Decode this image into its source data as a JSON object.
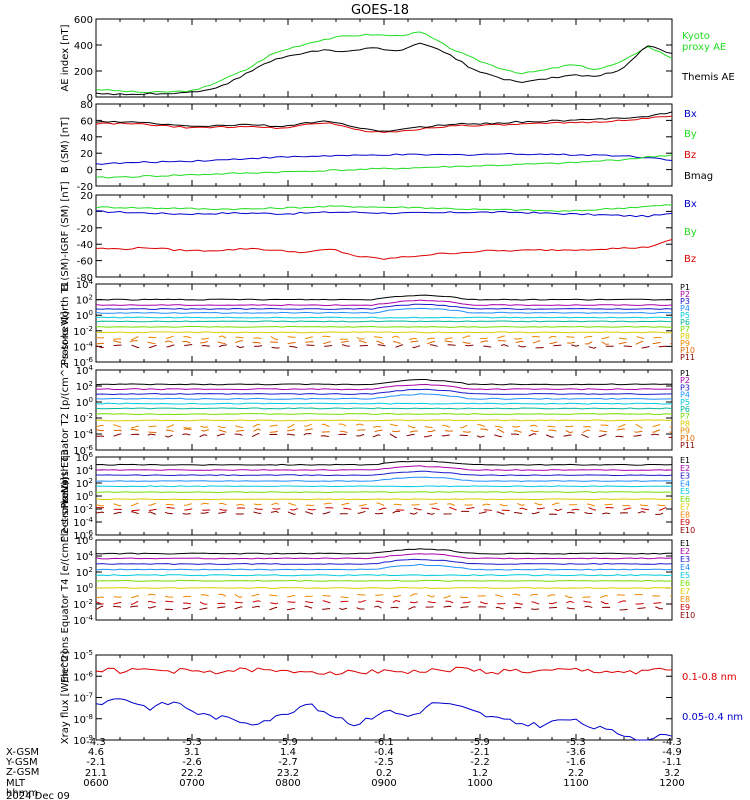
{
  "title": "GOES-18",
  "colors": {
    "black": "#000000",
    "green": "#22dd22",
    "red": "#dd0000",
    "blue": "#0000cc",
    "purple": "#aa00aa",
    "navy": "#1a1acc",
    "lightblue": "#1f8fff",
    "cyan": "#00ccdd",
    "teal": "#00bb99",
    "greenyellow": "#77dd00",
    "gold": "#ddcc00",
    "orange": "#ee8800",
    "darkorange": "#dd6600",
    "darkred": "#aa0000",
    "crimson": "#cc0000",
    "maroon": "#880000"
  },
  "ephemeris": {
    "row_labels": [
      "X-GSM",
      "Y-GSM",
      "Z-GSM",
      "MLT",
      "hhmm",
      "2024 Dec 09"
    ],
    "columns": [
      {
        "x_gsm": "-4.3",
        "y_gsm": "4.6",
        "z_gsm": "-2.1",
        "mlt": "21.1",
        "hhmm": "0600"
      },
      {
        "x_gsm": "-5.3",
        "y_gsm": "3.1",
        "z_gsm": "-2.6",
        "mlt": "22.2",
        "hhmm": "0700"
      },
      {
        "x_gsm": "-5.9",
        "y_gsm": "1.4",
        "z_gsm": "-2.7",
        "mlt": "23.2",
        "hhmm": "0800"
      },
      {
        "x_gsm": "-6.1",
        "y_gsm": "-0.4",
        "z_gsm": "-2.5",
        "mlt": "0.2",
        "hhmm": "0900"
      },
      {
        "x_gsm": "-5.9",
        "y_gsm": "-2.1",
        "z_gsm": "-2.2",
        "mlt": "1.2",
        "hhmm": "1000"
      },
      {
        "x_gsm": "-5.3",
        "y_gsm": "-3.6",
        "z_gsm": "-1.6",
        "mlt": "2.2",
        "hhmm": "1100"
      },
      {
        "x_gsm": "-4.3",
        "y_gsm": "-4.9",
        "z_gsm": "-1.1",
        "mlt": "3.2",
        "hhmm": "1200"
      }
    ]
  },
  "chart_data": [
    {
      "type": "line",
      "id": "ae",
      "ylabel": "AE index [nT]",
      "ylim": [
        0,
        600
      ],
      "yticks": [
        "0",
        "200",
        "400",
        "600"
      ],
      "series": [
        {
          "name": "Kyoto proxy AE",
          "color": "green",
          "y": [
            60,
            45,
            35,
            40,
            50,
            130,
            210,
            330,
            390,
            440,
            470,
            480,
            470,
            500,
            390,
            300,
            230,
            180,
            210,
            250,
            210,
            270,
            390,
            300
          ]
        },
        {
          "name": "Themis AE",
          "color": "black",
          "y": [
            30,
            20,
            25,
            30,
            40,
            80,
            180,
            280,
            330,
            360,
            350,
            380,
            350,
            420,
            340,
            220,
            150,
            110,
            140,
            170,
            160,
            210,
            400,
            330
          ]
        }
      ],
      "legend": [
        "Kyoto proxy AE",
        "Themis AE"
      ]
    },
    {
      "type": "line",
      "id": "bsm",
      "ylabel": "B (SM) [nT]",
      "ylim": [
        -20,
        80
      ],
      "yticks": [
        "-20",
        "0",
        "20",
        "40",
        "60",
        "80"
      ],
      "series": [
        {
          "name": "Bx",
          "color": "blue",
          "y": [
            7,
            8,
            9,
            10,
            11,
            12,
            14,
            15,
            16,
            17,
            17,
            18,
            18,
            18,
            18,
            19,
            19,
            19,
            18,
            18,
            17,
            15,
            12
          ]
        },
        {
          "name": "By",
          "color": "green",
          "y": [
            -10,
            -9,
            -8,
            -7,
            -6,
            -5,
            -4,
            -3,
            -2,
            -1,
            0,
            1,
            2,
            3,
            4,
            5,
            6,
            7,
            8,
            10,
            12,
            15,
            18
          ]
        },
        {
          "name": "Bz",
          "color": "red",
          "y": [
            56,
            56,
            55,
            52,
            51,
            52,
            53,
            50,
            55,
            57,
            48,
            45,
            48,
            52,
            54,
            54,
            55,
            56,
            57,
            58,
            60,
            62,
            66
          ]
        },
        {
          "name": "Bmag",
          "color": "black",
          "y": [
            58,
            58,
            57,
            54,
            53,
            54,
            55,
            52,
            57,
            59,
            50,
            47,
            50,
            54,
            56,
            56,
            58,
            59,
            60,
            61,
            63,
            65,
            70
          ]
        }
      ],
      "legend": [
        "Bx",
        "By",
        "Bz",
        "Bmag"
      ]
    },
    {
      "type": "line",
      "id": "bigrf",
      "ylabel": "B (SM)-IGRF (SM) [nT]",
      "ylim": [
        -80,
        20
      ],
      "yticks": [
        "-80",
        "-60",
        "-40",
        "-20",
        "0",
        "20"
      ],
      "series": [
        {
          "name": "Bx",
          "color": "blue",
          "y": [
            0,
            -1,
            -2,
            -3,
            -3,
            -2,
            -2,
            -3,
            -2,
            -1,
            -1,
            -2,
            -2,
            -2,
            -1,
            -1,
            -1,
            -2,
            -3,
            -4,
            -5,
            -6,
            -3
          ]
        },
        {
          "name": "By",
          "color": "green",
          "y": [
            5,
            5,
            4,
            4,
            3,
            3,
            3,
            4,
            5,
            6,
            6,
            5,
            5,
            4,
            3,
            2,
            2,
            1,
            0,
            2,
            4,
            6,
            8
          ]
        },
        {
          "name": "Bz",
          "color": "red",
          "y": [
            -45,
            -46,
            -44,
            -47,
            -48,
            -47,
            -45,
            -48,
            -50,
            -46,
            -55,
            -58,
            -55,
            -52,
            -50,
            -48,
            -48,
            -47,
            -47,
            -46,
            -45,
            -44,
            -35
          ]
        }
      ],
      "legend": [
        "Bx",
        "By",
        "Bz"
      ]
    },
    {
      "type": "line",
      "id": "protons_north",
      "ylabel": "Protons North T1",
      "log": true,
      "ylim_exp": [
        -6,
        4
      ],
      "yticks": [
        "10^-6",
        "10^-4",
        "10^-2",
        "10^0",
        "10^2",
        "10^4"
      ],
      "levels": [
        2.0,
        1.3,
        0.8,
        0.3,
        -0.3,
        -0.8,
        -1.5,
        -2.2,
        -2.9,
        -3.5,
        -4.0
      ],
      "colors": [
        "black",
        "purple",
        "navy",
        "lightblue",
        "cyan",
        "teal",
        "greenyellow",
        "gold",
        "orange",
        "darkorange",
        "maroon"
      ],
      "legend": [
        "P1",
        "P2",
        "P3",
        "P4",
        "P5",
        "P6",
        "P7",
        "P8",
        "P9",
        "P10",
        "P11"
      ]
    },
    {
      "type": "line",
      "id": "protons_equator",
      "ylabel": "Protons Equator T2 [p/(cm^2-s-sr-keV)]",
      "log": true,
      "ylim_exp": [
        -6,
        4
      ],
      "yticks": [
        "10^-6",
        "10^-4",
        "10^-2",
        "10^0",
        "10^2",
        "10^4"
      ],
      "levels": [
        2.2,
        1.6,
        1.0,
        0.4,
        -0.2,
        -0.8,
        -1.5,
        -2.3,
        -3.0,
        -3.6,
        -4.2
      ],
      "colors": [
        "black",
        "purple",
        "navy",
        "lightblue",
        "cyan",
        "teal",
        "greenyellow",
        "gold",
        "orange",
        "darkorange",
        "maroon"
      ],
      "legend": [
        "P1",
        "P2",
        "P3",
        "P4",
        "P5",
        "P6",
        "P7",
        "P8",
        "P9",
        "P10",
        "P11"
      ]
    },
    {
      "type": "line",
      "id": "electrons_north",
      "ylabel": "Electrons North T3",
      "log": true,
      "ylim_exp": [
        -6,
        6
      ],
      "yticks": [
        "10^-6",
        "10^-4",
        "10^-2",
        "10^0",
        "10^2",
        "10^4",
        "10^6"
      ],
      "levels": [
        4.8,
        4.0,
        3.2,
        2.3,
        1.5,
        0.6,
        -0.5,
        -1.3,
        -2.0,
        -2.6
      ],
      "colors": [
        "black",
        "purple",
        "navy",
        "lightblue",
        "cyan",
        "greenyellow",
        "gold",
        "orange",
        "crimson",
        "maroon"
      ],
      "legend": [
        "E1",
        "E2",
        "E3",
        "E4",
        "E5",
        "E6",
        "E7",
        "E8",
        "E9",
        "E10"
      ]
    },
    {
      "type": "line",
      "id": "electrons_equator",
      "ylabel": "Electrons Equator T4 [e/(cm^2-s-sr-keV)]",
      "log": true,
      "ylim_exp": [
        -4,
        6
      ],
      "yticks": [
        "10^-4",
        "10^-2",
        "10^0",
        "10^2",
        "10^4",
        "10^6"
      ],
      "levels": [
        4.3,
        3.7,
        3.0,
        2.3,
        1.6,
        0.9,
        0.0,
        -1.0,
        -1.8,
        -2.5
      ],
      "colors": [
        "black",
        "purple",
        "navy",
        "lightblue",
        "cyan",
        "greenyellow",
        "gold",
        "orange",
        "crimson",
        "maroon"
      ],
      "legend": [
        "E1",
        "E2",
        "E3",
        "E4",
        "E5",
        "E6",
        "E7",
        "E8",
        "E9",
        "E10"
      ]
    },
    {
      "type": "line",
      "id": "xray",
      "ylabel": "Xray flux [W/m^2]",
      "log": true,
      "ylim_exp": [
        -9,
        -5
      ],
      "yticks": [
        "10^-9",
        "10^-8",
        "10^-7",
        "10^-6",
        "10^-5"
      ],
      "series": [
        {
          "name": "0.1-0.8 nm",
          "color": "red",
          "y": [
            -5.7,
            -5.75,
            -5.7,
            -5.75,
            -5.8,
            -5.75,
            -5.7,
            -5.8,
            -5.75,
            -5.8,
            -5.85,
            -5.7,
            -5.8,
            -5.75,
            -5.65,
            -5.8,
            -5.75,
            -5.8,
            -5.7,
            -5.75,
            -5.8,
            -5.75,
            -5.7
          ]
        },
        {
          "name": "0.05-0.4 nm",
          "color": "blue",
          "y": [
            -7.3,
            -7.0,
            -7.5,
            -7.2,
            -7.8,
            -8.0,
            -8.2,
            -7.9,
            -7.3,
            -7.8,
            -8.3,
            -7.6,
            -7.9,
            -7.2,
            -7.5,
            -7.9,
            -8.2,
            -8.3,
            -8.0,
            -8.4,
            -8.7,
            -9.0,
            -8.7
          ]
        }
      ],
      "legend": [
        "0.1-0.8 nm",
        "0.05-0.4 nm"
      ]
    }
  ]
}
